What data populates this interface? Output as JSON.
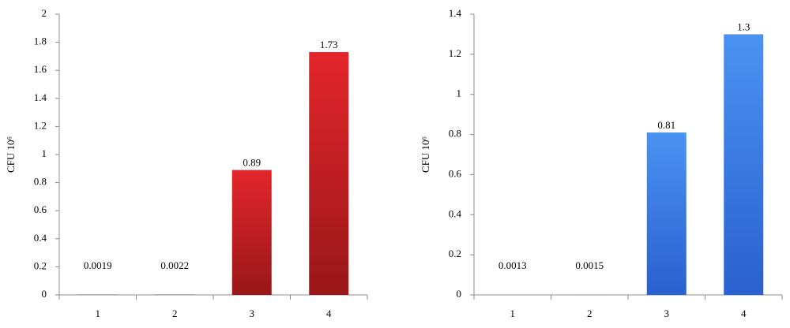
{
  "chart_data": [
    {
      "type": "bar",
      "y_label": "CFU 10⁶",
      "categories": [
        "1",
        "2",
        "3",
        "4"
      ],
      "values": [
        0.0019,
        0.0022,
        0.89,
        1.73
      ],
      "color": [
        "#e3262c",
        "#991717"
      ],
      "ylim": [
        0,
        2
      ],
      "yticks": [
        0,
        0.2,
        0.4,
        0.6,
        0.8,
        1,
        1.2,
        1.4,
        1.6,
        1.8,
        2
      ]
    },
    {
      "type": "bar",
      "y_label": "CFU 10⁶",
      "categories": [
        "1",
        "2",
        "3",
        "4"
      ],
      "values": [
        0.0013,
        0.0015,
        0.81,
        1.3
      ],
      "color": [
        "#4a93f2",
        "#2a60cf"
      ],
      "ylim": [
        0,
        1.4
      ],
      "yticks": [
        0,
        0.2,
        0.4,
        0.6,
        0.8,
        1,
        1.2,
        1.4
      ]
    }
  ]
}
